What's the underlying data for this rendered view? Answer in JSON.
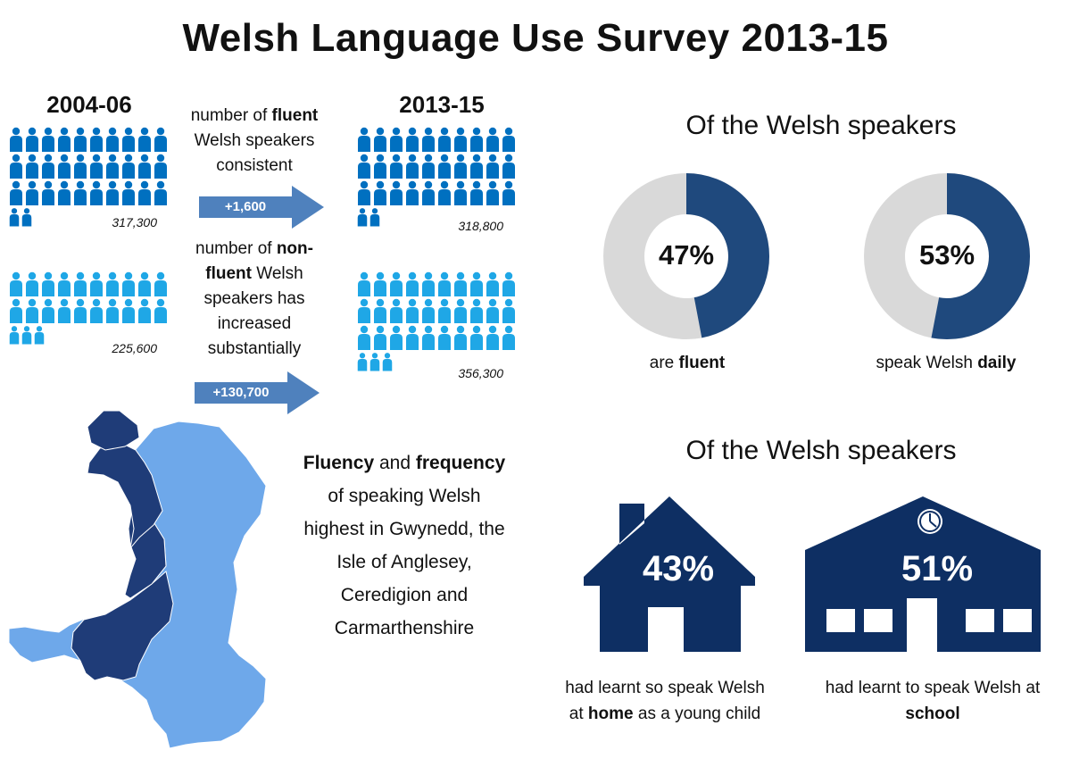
{
  "title": "Welsh Language Use Survey 2013-15",
  "colors": {
    "fluent_person": "#0070c0",
    "nonfluent_person": "#1fa7e6",
    "arrow": "#4f81bd",
    "donut_fill": "#1f497d",
    "donut_rest": "#d9d9d9",
    "map_dark": "#1f3c78",
    "map_light": "#6ea8ea",
    "building": "#0e2f63"
  },
  "icons": {
    "person": "person-icon",
    "arrow": "right-arrow-icon",
    "house": "house-icon",
    "school": "school-building-icon",
    "clock": "clock-icon",
    "map": "wales-map"
  },
  "periods": {
    "left": "2004-06",
    "right": "2013-15"
  },
  "fluent": {
    "desc_pre": "number of ",
    "desc_bold": "fluent",
    "desc_post": " Welsh speakers consistent",
    "change": "+1,600",
    "count_2004": "317,300",
    "count_2013": "318,800",
    "icons_full_2004": 30,
    "icons_partial_2004": 2,
    "icons_full_2013": 30,
    "icons_partial_2013": 2
  },
  "nonfluent": {
    "desc_pre": "number of ",
    "desc_bold": "non-fluent",
    "desc_post": " Welsh speakers has increased substantially",
    "change": "+130,700",
    "count_2004": "225,600",
    "count_2013": "356,300",
    "icons_full_2004": 20,
    "icons_partial_2004": 3,
    "icons_full_2013": 30,
    "icons_partial_2013": 3
  },
  "speakers_heading_1": "Of the Welsh speakers",
  "speakers_heading_2": "Of the Welsh speakers",
  "donuts": [
    {
      "value": 0.47,
      "label": "47%",
      "caption_pre": "are ",
      "caption_bold": "fluent",
      "caption_post": ""
    },
    {
      "value": 0.53,
      "label": "53%",
      "caption_pre": "speak Welsh ",
      "caption_bold": "daily",
      "caption_post": ""
    }
  ],
  "buildings": [
    {
      "label": "43%",
      "caption_pre": "had learnt so speak Welsh at ",
      "caption_bold": "home",
      "caption_post": " as a young child"
    },
    {
      "label": "51%",
      "caption_pre": "had learnt to speak Welsh at ",
      "caption_bold": "school",
      "caption_post": ""
    }
  ],
  "map_caption": {
    "bold1": "Fluency",
    "mid1": " and ",
    "bold2": "frequency",
    "rest": " of speaking Welsh highest in Gwynedd, the Isle of Anglesey, Ceredigion and Carmarthenshire"
  }
}
